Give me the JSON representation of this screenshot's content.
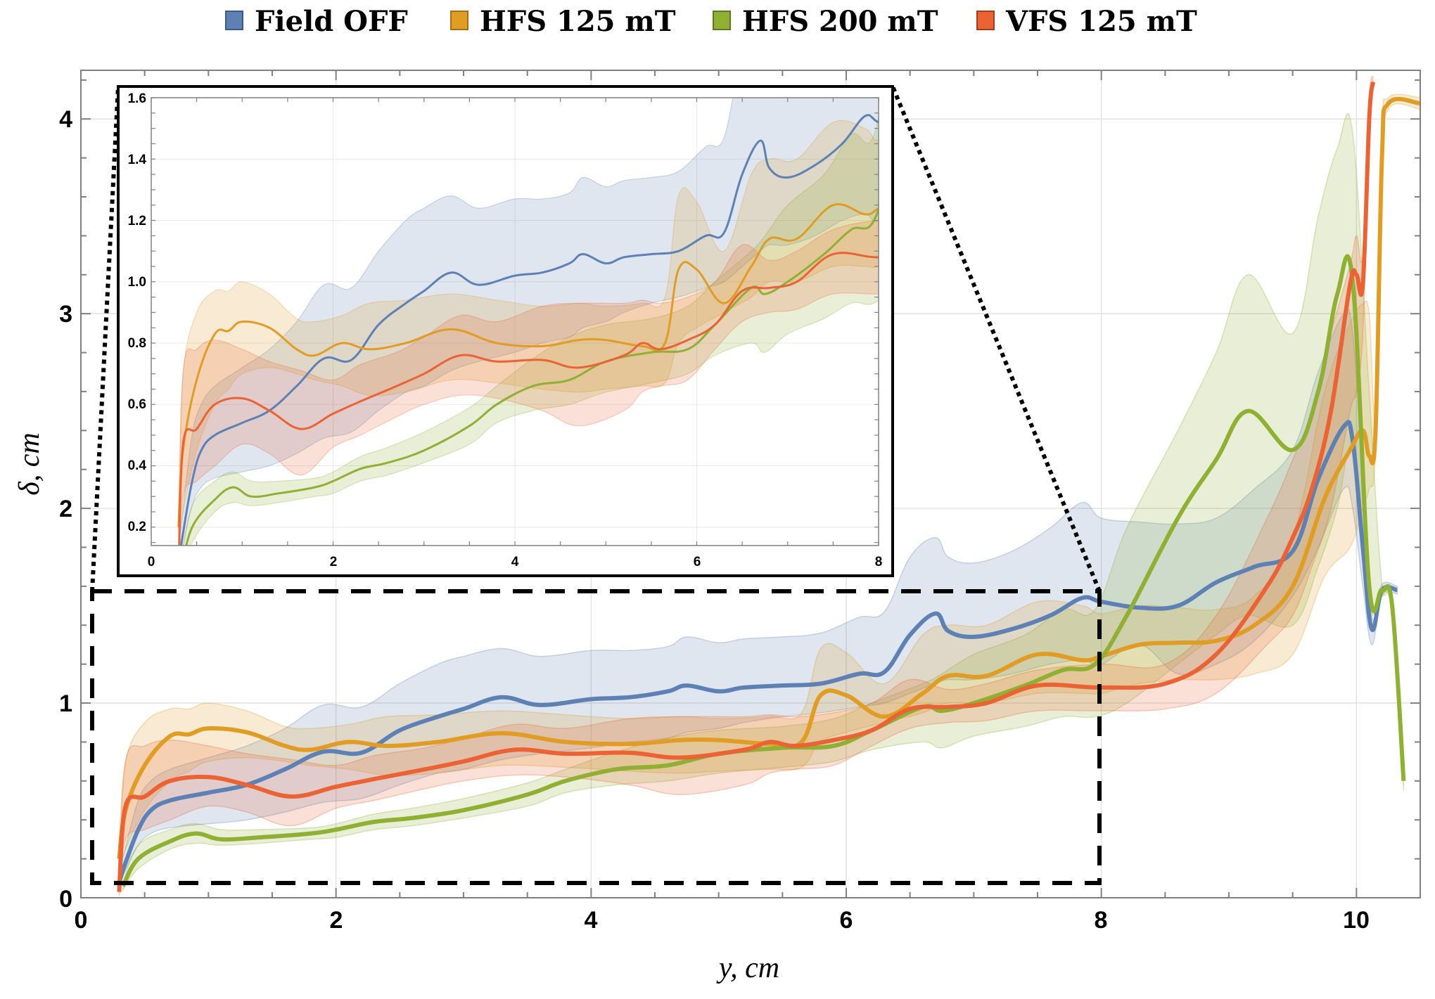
{
  "chart_data": {
    "type": "line",
    "title": "",
    "xlabel": "y,  cm",
    "ylabel": "δ,  cm",
    "xlim": [
      0,
      10.5
    ],
    "ylim": [
      0,
      4.25
    ],
    "grid": true,
    "legend_position": "top-center",
    "x_ticks": [
      "0",
      "2",
      "4",
      "6",
      "8",
      "10"
    ],
    "y_ticks": [
      "0",
      "1",
      "2",
      "3",
      "4"
    ],
    "band_style": "shaded mean ± spread",
    "series": [
      {
        "name": "Field OFF",
        "color": "#5E81B5",
        "x": [
          0.3,
          0.35,
          0.45,
          0.55,
          0.7,
          1.0,
          1.3,
          1.6,
          1.9,
          2.2,
          2.5,
          2.8,
          3.0,
          3.3,
          3.6,
          4.0,
          4.3,
          4.6,
          4.75,
          5.0,
          5.2,
          5.5,
          5.8,
          6.1,
          6.3,
          6.5,
          6.7,
          6.8,
          7.0,
          7.3,
          7.6,
          7.85,
          8.0,
          8.3,
          8.6,
          8.9,
          9.2,
          9.5,
          9.7,
          9.9,
          9.97,
          10.05,
          10.12,
          10.2,
          10.32
        ],
        "mean": [
          0.08,
          0.18,
          0.35,
          0.45,
          0.5,
          0.54,
          0.58,
          0.66,
          0.75,
          0.745,
          0.86,
          0.93,
          0.97,
          1.03,
          0.99,
          1.02,
          1.03,
          1.06,
          1.09,
          1.06,
          1.08,
          1.09,
          1.1,
          1.15,
          1.16,
          1.35,
          1.46,
          1.37,
          1.34,
          1.38,
          1.45,
          1.54,
          1.52,
          1.49,
          1.5,
          1.62,
          1.7,
          1.78,
          2.15,
          2.42,
          2.35,
          1.8,
          1.38,
          1.58,
          1.58
        ],
        "lower": [
          0.05,
          0.14,
          0.27,
          0.33,
          0.36,
          0.38,
          0.4,
          0.44,
          0.49,
          0.51,
          0.58,
          0.64,
          0.66,
          0.71,
          0.74,
          0.77,
          0.8,
          0.82,
          0.85,
          0.87,
          0.9,
          0.93,
          0.95,
          0.98,
          1.0,
          1.05,
          1.1,
          1.12,
          1.12,
          1.15,
          1.2,
          1.22,
          1.2,
          1.3,
          1.15,
          1.2,
          1.32,
          1.55,
          1.8,
          2.1,
          2.0,
          1.6,
          1.3,
          1.55,
          1.56
        ],
        "upper": [
          0.12,
          0.26,
          0.5,
          0.6,
          0.66,
          0.72,
          0.78,
          0.87,
          0.99,
          0.98,
          1.1,
          1.2,
          1.24,
          1.28,
          1.24,
          1.27,
          1.27,
          1.29,
          1.34,
          1.31,
          1.33,
          1.34,
          1.36,
          1.44,
          1.47,
          1.75,
          1.85,
          1.75,
          1.72,
          1.78,
          1.9,
          2.03,
          1.95,
          1.93,
          1.92,
          1.95,
          2.1,
          2.3,
          2.7,
          3.0,
          2.9,
          2.2,
          1.45,
          1.61,
          1.6
        ]
      },
      {
        "name": "HFS 125 mT",
        "color": "#E19C24",
        "x": [
          0.3,
          0.35,
          0.5,
          0.7,
          0.85,
          1.0,
          1.3,
          1.6,
          1.8,
          2.1,
          2.4,
          2.8,
          3.3,
          3.8,
          4.3,
          4.7,
          5.0,
          5.4,
          5.65,
          5.8,
          6.0,
          6.3,
          6.6,
          6.8,
          7.1,
          7.5,
          7.85,
          8.0,
          8.3,
          8.6,
          8.9,
          9.2,
          9.5,
          9.75,
          9.95,
          10.05,
          10.1,
          10.15,
          10.2,
          10.25,
          10.5
        ],
        "mean": [
          0.2,
          0.45,
          0.68,
          0.83,
          0.84,
          0.87,
          0.85,
          0.78,
          0.76,
          0.8,
          0.78,
          0.8,
          0.845,
          0.8,
          0.79,
          0.81,
          0.81,
          0.79,
          0.8,
          1.04,
          1.04,
          0.93,
          1.05,
          1.14,
          1.14,
          1.25,
          1.22,
          1.24,
          1.3,
          1.31,
          1.32,
          1.4,
          1.6,
          2.05,
          2.3,
          2.4,
          2.27,
          2.4,
          3.8,
          4.08,
          4.08
        ],
        "lower": [
          0.15,
          0.25,
          0.45,
          0.6,
          0.65,
          0.7,
          0.72,
          0.7,
          0.68,
          0.66,
          0.63,
          0.64,
          0.68,
          0.67,
          0.65,
          0.64,
          0.65,
          0.66,
          0.67,
          0.8,
          0.85,
          0.9,
          0.95,
          1.0,
          1.0,
          1.05,
          1.05,
          1.05,
          1.1,
          1.12,
          1.12,
          1.15,
          1.25,
          1.65,
          1.8,
          2.0,
          2.1,
          2.3,
          3.7,
          4.05,
          4.05
        ],
        "upper": [
          0.25,
          0.7,
          0.9,
          0.97,
          0.97,
          1.0,
          0.96,
          0.88,
          0.87,
          0.89,
          0.93,
          0.94,
          0.96,
          0.94,
          0.92,
          0.93,
          0.92,
          0.93,
          0.95,
          1.28,
          1.26,
          1.1,
          1.35,
          1.4,
          1.4,
          1.52,
          1.5,
          1.46,
          1.5,
          1.49,
          1.48,
          1.55,
          1.85,
          2.6,
          2.95,
          3.05,
          3.0,
          2.5,
          3.9,
          4.11,
          4.11
        ]
      },
      {
        "name": "HFS 200 mT",
        "color": "#8FB032",
        "x": [
          0.33,
          0.45,
          0.7,
          0.9,
          1.1,
          1.4,
          1.8,
          2.0,
          2.3,
          2.6,
          3.0,
          3.5,
          3.8,
          4.2,
          4.6,
          5.0,
          5.5,
          5.9,
          6.2,
          6.6,
          6.75,
          7.0,
          7.4,
          7.7,
          7.95,
          8.2,
          8.6,
          8.9,
          9.15,
          9.5,
          9.7,
          9.85,
          9.97,
          10.1,
          10.2,
          10.28,
          10.37
        ],
        "mean": [
          0.06,
          0.2,
          0.29,
          0.33,
          0.3,
          0.31,
          0.33,
          0.35,
          0.39,
          0.41,
          0.45,
          0.53,
          0.6,
          0.66,
          0.68,
          0.74,
          0.77,
          0.78,
          0.86,
          0.98,
          0.96,
          1.0,
          1.09,
          1.17,
          1.2,
          1.45,
          1.95,
          2.25,
          2.5,
          2.3,
          2.6,
          3.1,
          3.17,
          1.6,
          1.58,
          1.5,
          0.6
        ],
        "lower": [
          0.04,
          0.15,
          0.25,
          0.28,
          0.27,
          0.28,
          0.3,
          0.31,
          0.35,
          0.37,
          0.41,
          0.47,
          0.54,
          0.58,
          0.6,
          0.64,
          0.67,
          0.7,
          0.76,
          0.8,
          0.77,
          0.83,
          0.88,
          0.93,
          0.93,
          1.0,
          1.2,
          1.35,
          1.45,
          1.4,
          1.7,
          2.0,
          2.3,
          1.5,
          1.55,
          1.45,
          0.55
        ],
        "upper": [
          0.08,
          0.27,
          0.35,
          0.38,
          0.35,
          0.35,
          0.36,
          0.38,
          0.43,
          0.46,
          0.51,
          0.59,
          0.66,
          0.75,
          0.82,
          0.86,
          0.88,
          0.92,
          1.0,
          1.1,
          1.15,
          1.25,
          1.35,
          1.48,
          1.48,
          1.9,
          2.4,
          2.8,
          3.2,
          2.9,
          3.5,
          3.85,
          3.93,
          2.6,
          1.62,
          1.55,
          0.65
        ]
      },
      {
        "name": "VFS 125 mT",
        "color": "#EB6235",
        "x": [
          0.3,
          0.35,
          0.5,
          0.7,
          1.0,
          1.3,
          1.65,
          2.0,
          2.3,
          2.7,
          3.0,
          3.4,
          3.8,
          4.3,
          4.7,
          5.2,
          5.4,
          5.6,
          5.9,
          6.2,
          6.5,
          6.8,
          7.1,
          7.5,
          8.0,
          8.5,
          8.9,
          9.3,
          9.5,
          9.65,
          9.8,
          9.95,
          10.0,
          10.05,
          10.1,
          10.13
        ],
        "mean": [
          0.03,
          0.47,
          0.52,
          0.6,
          0.62,
          0.58,
          0.52,
          0.57,
          0.61,
          0.66,
          0.7,
          0.76,
          0.74,
          0.745,
          0.72,
          0.76,
          0.8,
          0.78,
          0.81,
          0.86,
          0.97,
          0.98,
          1.0,
          1.09,
          1.08,
          1.1,
          1.25,
          1.6,
          1.85,
          2.1,
          2.5,
          3.15,
          3.2,
          3.15,
          4.0,
          4.19
        ],
        "lower": [
          0.01,
          0.3,
          0.35,
          0.4,
          0.47,
          0.44,
          0.37,
          0.46,
          0.5,
          0.56,
          0.6,
          0.63,
          0.62,
          0.58,
          0.53,
          0.58,
          0.64,
          0.66,
          0.68,
          0.78,
          0.87,
          0.9,
          0.91,
          0.96,
          0.96,
          0.97,
          1.05,
          1.3,
          1.45,
          1.7,
          2.0,
          2.5,
          2.6,
          2.9,
          3.9,
          4.15
        ],
        "upper": [
          0.05,
          0.7,
          0.78,
          0.81,
          0.78,
          0.74,
          0.71,
          0.68,
          0.73,
          0.77,
          0.82,
          0.89,
          0.87,
          0.92,
          0.93,
          0.93,
          0.94,
          0.93,
          0.95,
          1.0,
          1.12,
          1.07,
          1.1,
          1.17,
          1.2,
          1.2,
          1.45,
          1.95,
          2.25,
          2.5,
          2.9,
          3.25,
          3.4,
          3.3,
          4.1,
          4.22
        ]
      }
    ],
    "inset": {
      "xlim": [
        0,
        8
      ],
      "ylim": [
        0.14,
        1.6
      ],
      "x_ticks": [
        "0",
        "2",
        "4",
        "6",
        "8"
      ],
      "y_ticks": [
        "0.2",
        "0.4",
        "0.6",
        "0.8",
        "1.0",
        "1.2",
        "1.4",
        "1.6"
      ],
      "zoom_region": {
        "x": [
          0.09,
          8.0
        ],
        "y": [
          0.076,
          1.574
        ]
      }
    }
  }
}
